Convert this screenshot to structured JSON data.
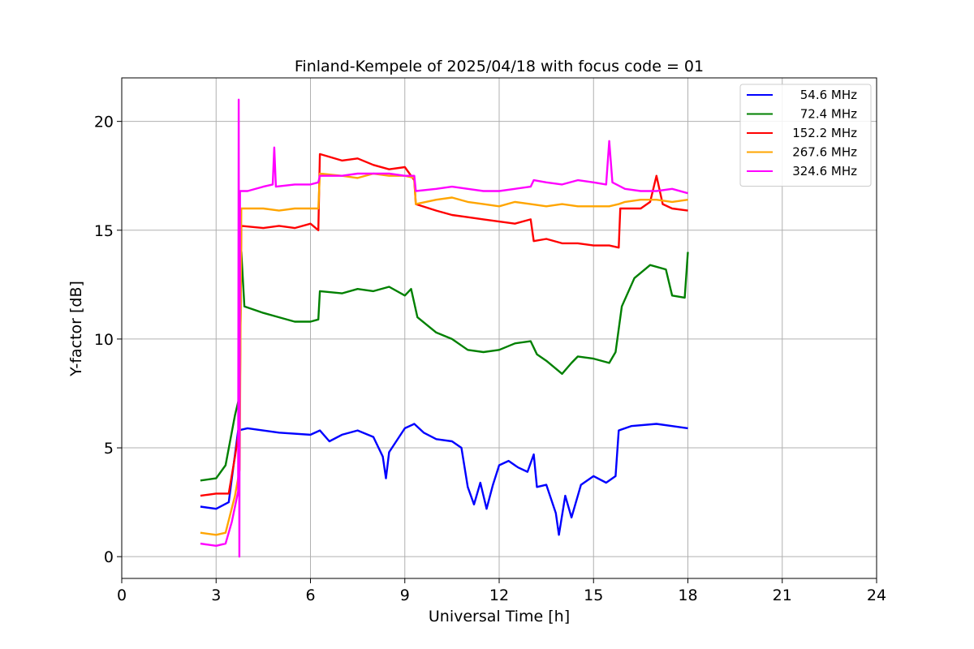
{
  "chart_data": {
    "type": "line",
    "title": "Finland-Kempele of 2025/04/18 with focus code = 01",
    "xlabel": "Universal Time [h]",
    "ylabel": "Y-factor [dB]",
    "xlim": [
      0,
      24
    ],
    "ylim": [
      -1,
      22
    ],
    "xticks": [
      0,
      3,
      6,
      9,
      12,
      15,
      18,
      21,
      24
    ],
    "yticks": [
      0,
      5,
      10,
      15,
      20
    ],
    "grid": true,
    "legend_position": "top-right",
    "series": [
      {
        "name": "54.6 MHz",
        "color": "#0000ff",
        "points": [
          [
            2.5,
            2.3
          ],
          [
            3.0,
            2.2
          ],
          [
            3.4,
            2.5
          ],
          [
            3.7,
            5.8
          ],
          [
            4.0,
            5.9
          ],
          [
            5.0,
            5.7
          ],
          [
            6.0,
            5.6
          ],
          [
            6.3,
            5.8
          ],
          [
            6.6,
            5.3
          ],
          [
            7.0,
            5.6
          ],
          [
            7.5,
            5.8
          ],
          [
            8.0,
            5.5
          ],
          [
            8.3,
            4.6
          ],
          [
            8.4,
            3.6
          ],
          [
            8.5,
            4.8
          ],
          [
            9.0,
            5.9
          ],
          [
            9.3,
            6.1
          ],
          [
            9.6,
            5.7
          ],
          [
            10.0,
            5.4
          ],
          [
            10.5,
            5.3
          ],
          [
            10.8,
            5.0
          ],
          [
            11.0,
            3.2
          ],
          [
            11.2,
            2.4
          ],
          [
            11.4,
            3.4
          ],
          [
            11.6,
            2.2
          ],
          [
            11.8,
            3.3
          ],
          [
            12.0,
            4.2
          ],
          [
            12.3,
            4.4
          ],
          [
            12.6,
            4.1
          ],
          [
            12.9,
            3.9
          ],
          [
            13.1,
            4.7
          ],
          [
            13.2,
            3.2
          ],
          [
            13.5,
            3.3
          ],
          [
            13.8,
            2.0
          ],
          [
            13.9,
            1.0
          ],
          [
            14.1,
            2.8
          ],
          [
            14.3,
            1.8
          ],
          [
            14.6,
            3.3
          ],
          [
            15.0,
            3.7
          ],
          [
            15.4,
            3.4
          ],
          [
            15.7,
            3.7
          ],
          [
            15.8,
            5.8
          ],
          [
            16.2,
            6.0
          ],
          [
            17.0,
            6.1
          ],
          [
            17.5,
            6.0
          ],
          [
            18.0,
            5.9
          ]
        ]
      },
      {
        "name": "72.4 MHz",
        "color": "#008000",
        "points": [
          [
            2.5,
            3.5
          ],
          [
            3.0,
            3.6
          ],
          [
            3.3,
            4.2
          ],
          [
            3.6,
            6.5
          ],
          [
            3.75,
            7.4
          ],
          [
            3.8,
            14.0
          ],
          [
            3.9,
            11.5
          ],
          [
            4.5,
            11.2
          ],
          [
            5.0,
            11.0
          ],
          [
            5.5,
            10.8
          ],
          [
            6.0,
            10.8
          ],
          [
            6.25,
            10.9
          ],
          [
            6.3,
            12.2
          ],
          [
            7.0,
            12.1
          ],
          [
            7.5,
            12.3
          ],
          [
            8.0,
            12.2
          ],
          [
            8.5,
            12.4
          ],
          [
            9.0,
            12.0
          ],
          [
            9.2,
            12.3
          ],
          [
            9.4,
            11.0
          ],
          [
            10.0,
            10.3
          ],
          [
            10.5,
            10.0
          ],
          [
            11.0,
            9.5
          ],
          [
            11.5,
            9.4
          ],
          [
            12.0,
            9.5
          ],
          [
            12.5,
            9.8
          ],
          [
            13.0,
            9.9
          ],
          [
            13.2,
            9.3
          ],
          [
            13.5,
            9.0
          ],
          [
            14.0,
            8.4
          ],
          [
            14.3,
            8.9
          ],
          [
            14.5,
            9.2
          ],
          [
            15.0,
            9.1
          ],
          [
            15.5,
            8.9
          ],
          [
            15.7,
            9.4
          ],
          [
            15.9,
            11.5
          ],
          [
            16.3,
            12.8
          ],
          [
            16.8,
            13.4
          ],
          [
            17.3,
            13.2
          ],
          [
            17.5,
            12.0
          ],
          [
            17.9,
            11.9
          ],
          [
            18.0,
            14.0
          ]
        ]
      },
      {
        "name": "152.2 MHz",
        "color": "#ff0000",
        "points": [
          [
            2.5,
            2.8
          ],
          [
            3.0,
            2.9
          ],
          [
            3.4,
            2.9
          ],
          [
            3.6,
            4.6
          ],
          [
            3.75,
            6.0
          ],
          [
            3.8,
            15.2
          ],
          [
            4.5,
            15.1
          ],
          [
            5.0,
            15.2
          ],
          [
            5.5,
            15.1
          ],
          [
            6.0,
            15.3
          ],
          [
            6.25,
            15.0
          ],
          [
            6.3,
            18.5
          ],
          [
            7.0,
            18.2
          ],
          [
            7.5,
            18.3
          ],
          [
            8.0,
            18.0
          ],
          [
            8.5,
            17.8
          ],
          [
            9.0,
            17.9
          ],
          [
            9.3,
            17.3
          ],
          [
            9.35,
            16.2
          ],
          [
            10.0,
            15.9
          ],
          [
            10.5,
            15.7
          ],
          [
            11.0,
            15.6
          ],
          [
            11.5,
            15.5
          ],
          [
            12.0,
            15.4
          ],
          [
            12.5,
            15.3
          ],
          [
            13.0,
            15.5
          ],
          [
            13.1,
            14.5
          ],
          [
            13.5,
            14.6
          ],
          [
            14.0,
            14.4
          ],
          [
            14.5,
            14.4
          ],
          [
            15.0,
            14.3
          ],
          [
            15.5,
            14.3
          ],
          [
            15.8,
            14.2
          ],
          [
            15.85,
            16.0
          ],
          [
            16.5,
            16.0
          ],
          [
            16.8,
            16.3
          ],
          [
            17.0,
            17.5
          ],
          [
            17.2,
            16.2
          ],
          [
            17.5,
            16.0
          ],
          [
            18.0,
            15.9
          ]
        ]
      },
      {
        "name": "267.6 MHz",
        "color": "#ffa500",
        "points": [
          [
            2.5,
            1.1
          ],
          [
            3.0,
            1.0
          ],
          [
            3.3,
            1.1
          ],
          [
            3.6,
            2.8
          ],
          [
            3.75,
            4.0
          ],
          [
            3.8,
            16.0
          ],
          [
            4.5,
            16.0
          ],
          [
            5.0,
            15.9
          ],
          [
            5.5,
            16.0
          ],
          [
            6.0,
            16.0
          ],
          [
            6.25,
            16.0
          ],
          [
            6.3,
            17.6
          ],
          [
            7.0,
            17.5
          ],
          [
            7.5,
            17.4
          ],
          [
            8.0,
            17.6
          ],
          [
            8.5,
            17.5
          ],
          [
            9.0,
            17.5
          ],
          [
            9.3,
            17.4
          ],
          [
            9.35,
            16.2
          ],
          [
            10.0,
            16.4
          ],
          [
            10.5,
            16.5
          ],
          [
            11.0,
            16.3
          ],
          [
            11.5,
            16.2
          ],
          [
            12.0,
            16.1
          ],
          [
            12.5,
            16.3
          ],
          [
            13.0,
            16.2
          ],
          [
            13.5,
            16.1
          ],
          [
            14.0,
            16.2
          ],
          [
            14.5,
            16.1
          ],
          [
            15.0,
            16.1
          ],
          [
            15.5,
            16.1
          ],
          [
            15.8,
            16.2
          ],
          [
            16.0,
            16.3
          ],
          [
            16.5,
            16.4
          ],
          [
            17.0,
            16.4
          ],
          [
            17.5,
            16.3
          ],
          [
            18.0,
            16.4
          ]
        ]
      },
      {
        "name": "324.6 MHz",
        "color": "#ff00ff",
        "points": [
          [
            2.5,
            0.6
          ],
          [
            3.0,
            0.5
          ],
          [
            3.3,
            0.6
          ],
          [
            3.5,
            1.6
          ],
          [
            3.7,
            3.0
          ],
          [
            3.72,
            21.0
          ],
          [
            3.74,
            0.0
          ],
          [
            3.76,
            16.8
          ],
          [
            4.0,
            16.8
          ],
          [
            4.5,
            17.0
          ],
          [
            4.8,
            17.1
          ],
          [
            4.85,
            18.8
          ],
          [
            4.9,
            17.0
          ],
          [
            5.5,
            17.1
          ],
          [
            6.0,
            17.1
          ],
          [
            6.25,
            17.2
          ],
          [
            6.3,
            17.5
          ],
          [
            7.0,
            17.5
          ],
          [
            7.5,
            17.6
          ],
          [
            8.0,
            17.6
          ],
          [
            8.5,
            17.6
          ],
          [
            9.0,
            17.5
          ],
          [
            9.3,
            17.5
          ],
          [
            9.35,
            16.8
          ],
          [
            10.0,
            16.9
          ],
          [
            10.5,
            17.0
          ],
          [
            11.0,
            16.9
          ],
          [
            11.5,
            16.8
          ],
          [
            12.0,
            16.8
          ],
          [
            12.5,
            16.9
          ],
          [
            13.0,
            17.0
          ],
          [
            13.1,
            17.3
          ],
          [
            13.5,
            17.2
          ],
          [
            14.0,
            17.1
          ],
          [
            14.5,
            17.3
          ],
          [
            15.0,
            17.2
          ],
          [
            15.4,
            17.1
          ],
          [
            15.5,
            19.1
          ],
          [
            15.6,
            17.2
          ],
          [
            16.0,
            16.9
          ],
          [
            16.5,
            16.8
          ],
          [
            17.0,
            16.8
          ],
          [
            17.5,
            16.9
          ],
          [
            18.0,
            16.7
          ]
        ]
      }
    ]
  }
}
